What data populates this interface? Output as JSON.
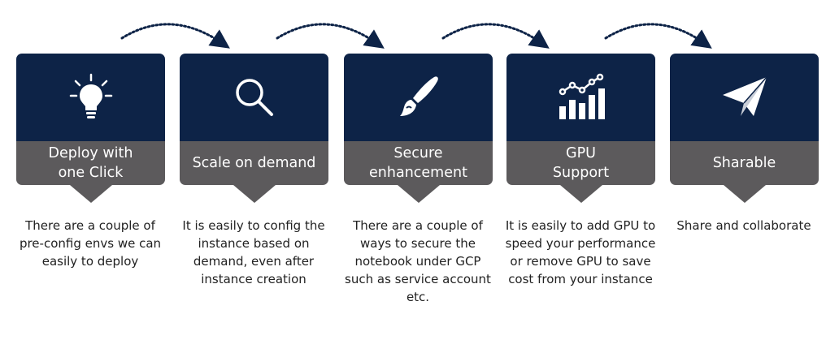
{
  "colors": {
    "card_top": "#0d2347",
    "card_bottom": "#5c5a5c",
    "arrow": "#0d2347"
  },
  "steps": [
    {
      "title": "Deploy with\none Click",
      "icon": "lightbulb-icon",
      "description": "There are a couple of pre-config envs we can easily to deploy"
    },
    {
      "title": "Scale on demand",
      "icon": "magnifier-icon",
      "description": "It is easily to config the instance based on demand, even after instance creation"
    },
    {
      "title": "Secure\nenhancement",
      "icon": "brush-icon",
      "description": "There are a couple of ways to secure the notebook under GCP such as service account etc."
    },
    {
      "title": "GPU\nSupport",
      "icon": "growth-chart-icon",
      "description": "It is easily to add GPU to speed your performance or remove GPU to save cost from your instance"
    },
    {
      "title": "Sharable",
      "icon": "paper-plane-icon",
      "description": "Share and collaborate"
    }
  ]
}
